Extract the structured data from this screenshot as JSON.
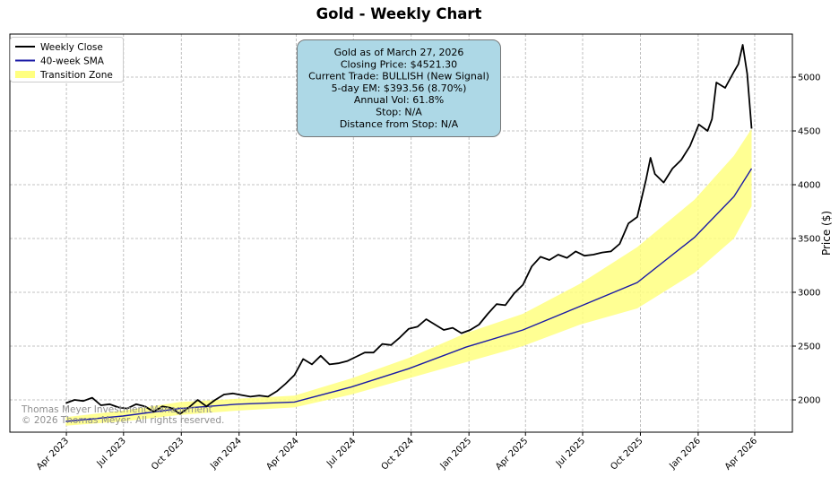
{
  "chart_data": {
    "type": "line",
    "title": "Gold - Weekly Chart",
    "ylabel": "Price ($)",
    "xlabel": "",
    "ylim": [
      1700,
      5400
    ],
    "y_axis_side": "right",
    "grid": true,
    "legend_position": "top-left",
    "x_tick_labels": [
      "Apr 2023",
      "Jul 2023",
      "Oct 2023",
      "Jan 2024",
      "Apr 2024",
      "Jul 2024",
      "Oct 2024",
      "Jan 2025",
      "Apr 2025",
      "Jul 2025",
      "Oct 2025",
      "Jan 2026",
      "Apr 2026"
    ],
    "y_ticks": [
      2000,
      2500,
      3000,
      3500,
      4000,
      4500,
      5000
    ],
    "legend": [
      {
        "name": "Weekly Close",
        "color": "#000000",
        "kind": "line"
      },
      {
        "name": "40-week SMA",
        "color": "#1a1aa6",
        "kind": "line"
      },
      {
        "name": "Transition Zone",
        "color": "#ffff80",
        "kind": "band"
      }
    ],
    "info_box": {
      "lines": [
        "Gold as of March 27, 2026",
        "Closing Price: $4521.30",
        "Current Trade: BULLISH (New Signal)",
        "5-day EM: $393.56 (8.70%)",
        "Annual Vol: 61.8%",
        "Stop: N/A",
        "Distance from Stop: N/A"
      ],
      "fill": "#add8e6"
    },
    "watermark": [
      "Thomas Meyer Investment Management",
      "© 2026 Thomas Meyer. All rights reserved."
    ],
    "series": [
      {
        "name": "Weekly Close",
        "color": "#000000",
        "x": [
          "2023-03-31",
          "2023-04-14",
          "2023-04-28",
          "2023-05-12",
          "2023-05-26",
          "2023-06-09",
          "2023-06-23",
          "2023-07-07",
          "2023-07-21",
          "2023-08-04",
          "2023-08-18",
          "2023-09-01",
          "2023-09-15",
          "2023-09-29",
          "2023-10-13",
          "2023-10-27",
          "2023-11-10",
          "2023-11-24",
          "2023-12-08",
          "2023-12-22",
          "2024-01-05",
          "2024-01-19",
          "2024-02-02",
          "2024-02-16",
          "2024-03-01",
          "2024-03-15",
          "2024-03-29",
          "2024-04-12",
          "2024-04-26",
          "2024-05-10",
          "2024-05-24",
          "2024-06-07",
          "2024-06-21",
          "2024-07-05",
          "2024-07-19",
          "2024-08-02",
          "2024-08-16",
          "2024-08-30",
          "2024-09-13",
          "2024-09-27",
          "2024-10-11",
          "2024-10-25",
          "2024-11-08",
          "2024-11-22",
          "2024-12-06",
          "2024-12-20",
          "2025-01-03",
          "2025-01-17",
          "2025-01-31",
          "2025-02-14",
          "2025-02-28",
          "2025-03-14",
          "2025-03-28",
          "2025-04-11",
          "2025-04-25",
          "2025-05-09",
          "2025-05-23",
          "2025-06-06",
          "2025-06-20",
          "2025-07-04",
          "2025-07-18",
          "2025-08-01",
          "2025-08-15",
          "2025-08-29",
          "2025-09-12",
          "2025-09-26",
          "2025-10-10",
          "2025-10-17",
          "2025-10-24",
          "2025-11-07",
          "2025-11-21",
          "2025-12-05",
          "2025-12-19",
          "2026-01-02",
          "2026-01-16",
          "2026-01-23",
          "2026-01-30",
          "2026-02-13",
          "2026-02-27",
          "2026-03-06",
          "2026-03-13",
          "2026-03-20",
          "2026-03-27"
        ],
        "values": [
          1970,
          2000,
          1990,
          2020,
          1950,
          1960,
          1930,
          1920,
          1960,
          1940,
          1890,
          1940,
          1925,
          1870,
          1930,
          2000,
          1940,
          2000,
          2050,
          2060,
          2045,
          2030,
          2040,
          2030,
          2080,
          2150,
          2230,
          2380,
          2330,
          2410,
          2330,
          2340,
          2360,
          2400,
          2440,
          2440,
          2520,
          2510,
          2580,
          2660,
          2680,
          2750,
          2700,
          2650,
          2670,
          2620,
          2650,
          2700,
          2800,
          2890,
          2880,
          2990,
          3070,
          3240,
          3330,
          3300,
          3350,
          3320,
          3380,
          3340,
          3350,
          3370,
          3380,
          3450,
          3640,
          3700,
          4050,
          4250,
          4100,
          4020,
          4150,
          4230,
          4360,
          4560,
          4500,
          4610,
          4950,
          4900,
          5050,
          5120,
          5300,
          5030,
          4521.3
        ]
      },
      {
        "name": "40-week SMA",
        "color": "#1a1aa6",
        "x": [
          "2023-03-31",
          "2023-06-30",
          "2023-09-29",
          "2023-12-29",
          "2024-03-29",
          "2024-06-28",
          "2024-09-27",
          "2024-12-27",
          "2025-03-28",
          "2025-06-27",
          "2025-09-26",
          "2025-12-26",
          "2026-02-27",
          "2026-03-27"
        ],
        "values": [
          1800,
          1850,
          1920,
          1960,
          1980,
          2120,
          2290,
          2490,
          2650,
          2870,
          3090,
          3510,
          3890,
          4150
        ]
      },
      {
        "name": "Transition Zone",
        "kind": "band",
        "color": "#ffff80",
        "x": [
          "2023-03-31",
          "2023-06-30",
          "2023-09-29",
          "2023-12-29",
          "2024-03-29",
          "2024-06-28",
          "2024-09-27",
          "2024-12-27",
          "2025-03-28",
          "2025-06-27",
          "2025-09-26",
          "2025-12-26",
          "2026-02-27",
          "2026-03-27"
        ],
        "upper": [
          1840,
          1900,
          1980,
          2010,
          2040,
          2200,
          2390,
          2620,
          2800,
          3080,
          3420,
          3860,
          4270,
          4520
        ],
        "lower": [
          1760,
          1800,
          1860,
          1900,
          1930,
          2050,
          2200,
          2350,
          2500,
          2700,
          2850,
          3180,
          3500,
          3800
        ]
      }
    ]
  }
}
